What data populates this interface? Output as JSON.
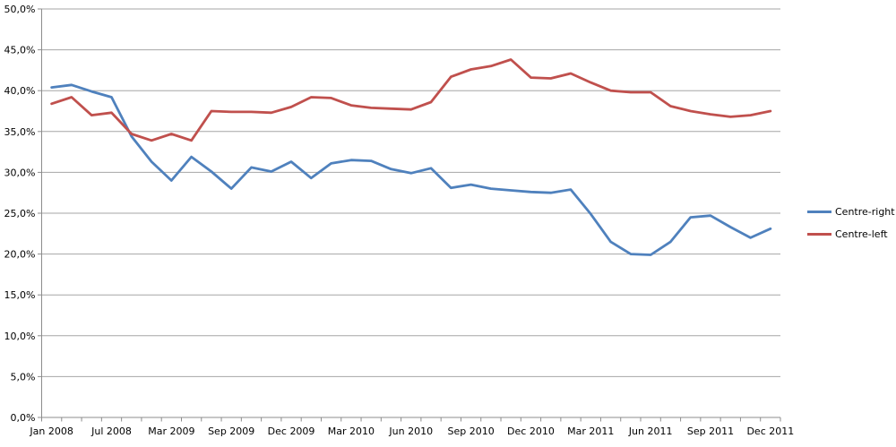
{
  "chart_data": {
    "type": "line",
    "title": "",
    "grid": true,
    "legend_position": "right",
    "y_axis": {
      "min": 0,
      "max": 50,
      "step": 5,
      "tick_labels": [
        "0,0%",
        "5,0%",
        "10,0%",
        "15,0%",
        "20,0%",
        "25,0%",
        "30,0%",
        "35,0%",
        "40,0%",
        "45,0%",
        "50,0%"
      ]
    },
    "x_axis": {
      "tick_labels": [
        "Jan 2008",
        "Jul 2008",
        "Mar 2009",
        "Sep 2009",
        "Dec 2009",
        "Mar 2010",
        "Jun 2010",
        "Sep 2010",
        "Dec 2010",
        "Mar 2011",
        "Jun 2011",
        "Sep 2011",
        "Dec 2011"
      ],
      "label_point_indices": [
        0,
        3,
        6,
        9,
        12,
        15,
        18,
        21,
        24,
        27,
        30,
        33,
        36
      ],
      "points_count": 37
    },
    "series": [
      {
        "name": "Centre-right",
        "color": "#4F81BD",
        "values": [
          40.4,
          40.7,
          39.9,
          39.2,
          34.4,
          31.3,
          29.0,
          31.9,
          30.1,
          28.0,
          30.6,
          30.1,
          31.3,
          29.3,
          31.1,
          31.5,
          31.4,
          30.4,
          29.9,
          30.5,
          28.1,
          28.5,
          28.0,
          27.8,
          27.6,
          27.5,
          27.9,
          24.9,
          21.5,
          20.0,
          19.9,
          21.5,
          24.5,
          24.7,
          23.3,
          22.0,
          23.1
        ]
      },
      {
        "name": "Centre-left",
        "color": "#C0504D",
        "values": [
          38.4,
          39.2,
          37.0,
          37.3,
          34.7,
          33.9,
          34.7,
          33.9,
          37.5,
          37.4,
          37.4,
          37.3,
          38.0,
          39.2,
          39.1,
          38.2,
          37.9,
          37.8,
          37.7,
          38.6,
          41.7,
          42.6,
          43.0,
          43.8,
          41.6,
          41.5,
          42.1,
          41.0,
          40.0,
          39.8,
          39.8,
          38.1,
          37.5,
          37.1,
          36.8,
          37.0,
          37.5
        ]
      }
    ],
    "colors": {
      "gridline": "#A6A6A6",
      "axis": "#8C8C8C",
      "tick_text": "#000000"
    }
  }
}
